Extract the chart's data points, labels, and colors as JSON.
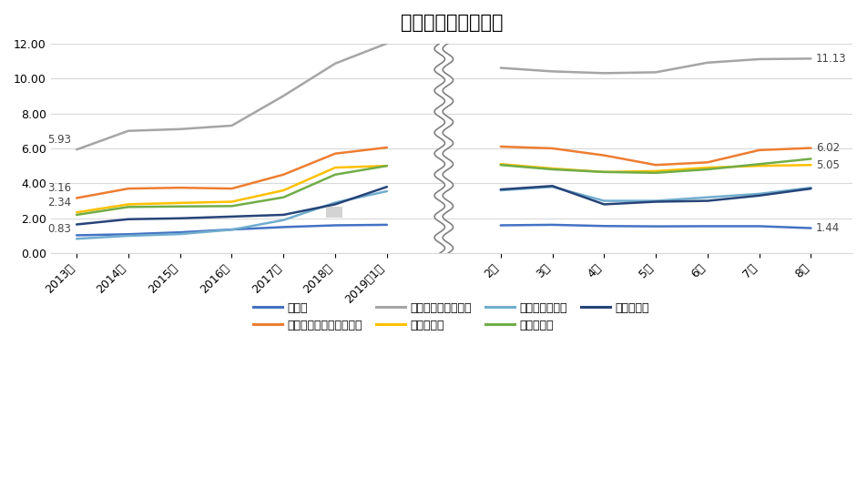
{
  "title": "有効求人倍率の推移",
  "x_labels_annual": [
    "2013年",
    "2014年",
    "2015年",
    "2016年",
    "2017年",
    "2018年",
    "2019年1月"
  ],
  "x_labels_monthly": [
    "2月",
    "3月",
    "4月",
    "5月",
    "6月",
    "7月",
    "8月"
  ],
  "ylim": [
    0,
    12.0
  ],
  "yticks": [
    0.0,
    2.0,
    4.0,
    6.0,
    8.0,
    10.0,
    12.0
  ],
  "series": [
    {
      "name": "全職業",
      "color": "#4472C4",
      "annual": [
        1.03,
        1.09,
        1.2,
        1.36,
        1.5,
        1.6,
        1.63
      ],
      "monthly": [
        1.6,
        1.63,
        1.56,
        1.54,
        1.55,
        1.55,
        1.44
      ],
      "linewidth": 1.8
    },
    {
      "name": "建築・土木・測量技術者",
      "color": "#ED7D31",
      "annual": [
        3.16,
        3.7,
        3.75,
        3.7,
        4.5,
        5.7,
        6.05
      ],
      "monthly": [
        6.1,
        6.0,
        5.6,
        5.05,
        5.2,
        5.9,
        6.02
      ],
      "linewidth": 1.8
    },
    {
      "name": "建設躯体工事の職業",
      "color": "#A5A5A5",
      "annual": [
        5.93,
        7.0,
        7.1,
        7.3,
        9.0,
        10.85,
        12.0
      ],
      "monthly": [
        10.6,
        10.4,
        10.3,
        10.35,
        10.9,
        11.1,
        11.13
      ],
      "linewidth": 1.8
    },
    {
      "name": "建設の職業",
      "color": "#FFC000",
      "annual": [
        2.34,
        2.8,
        2.88,
        2.95,
        3.6,
        4.9,
        5.0
      ],
      "monthly": [
        5.1,
        4.85,
        4.65,
        4.7,
        4.9,
        5.0,
        5.05
      ],
      "linewidth": 1.8
    },
    {
      "name": "電気工事の職業",
      "color": "#70ADCE",
      "annual": [
        0.83,
        1.0,
        1.1,
        1.35,
        1.9,
        2.9,
        3.55
      ],
      "monthly": [
        3.6,
        3.8,
        3.0,
        3.0,
        3.2,
        3.4,
        3.75
      ],
      "linewidth": 1.8
    },
    {
      "name": "土木の職業",
      "color": "#70AD47",
      "annual": [
        2.2,
        2.65,
        2.68,
        2.7,
        3.2,
        4.5,
        5.0
      ],
      "monthly": [
        5.05,
        4.8,
        4.65,
        4.6,
        4.8,
        5.1,
        5.4
      ],
      "linewidth": 1.8
    },
    {
      "name": "採掘の職業",
      "color": "#264478",
      "annual": [
        1.65,
        1.95,
        2.0,
        2.1,
        2.2,
        2.8,
        3.8
      ],
      "monthly": [
        3.65,
        3.85,
        2.8,
        2.95,
        3.0,
        3.3,
        3.7
      ],
      "linewidth": 1.8
    }
  ],
  "start_annotations": [
    {
      "text": "5.93",
      "series_idx": 2
    },
    {
      "text": "3.16",
      "series_idx": 1
    },
    {
      "text": "2.34",
      "series_idx": 3
    },
    {
      "text": "0.83",
      "series_idx": 4
    }
  ],
  "end_annotations": [
    {
      "text": "11.13",
      "series_idx": 2,
      "y": 11.13
    },
    {
      "text": "6.02",
      "series_idx": 1,
      "y": 6.02
    },
    {
      "text": "5.05",
      "series_idx": 3,
      "y": 5.05
    },
    {
      "text": "1.44",
      "series_idx": 0,
      "y": 1.44
    }
  ],
  "legend_order": [
    0,
    1,
    2,
    3,
    4,
    5,
    6
  ],
  "background_color": "#FFFFFF",
  "grid_color": "#D9D9D9",
  "title_fontsize": 15,
  "axis_fontsize": 9,
  "legend_fontsize": 9
}
